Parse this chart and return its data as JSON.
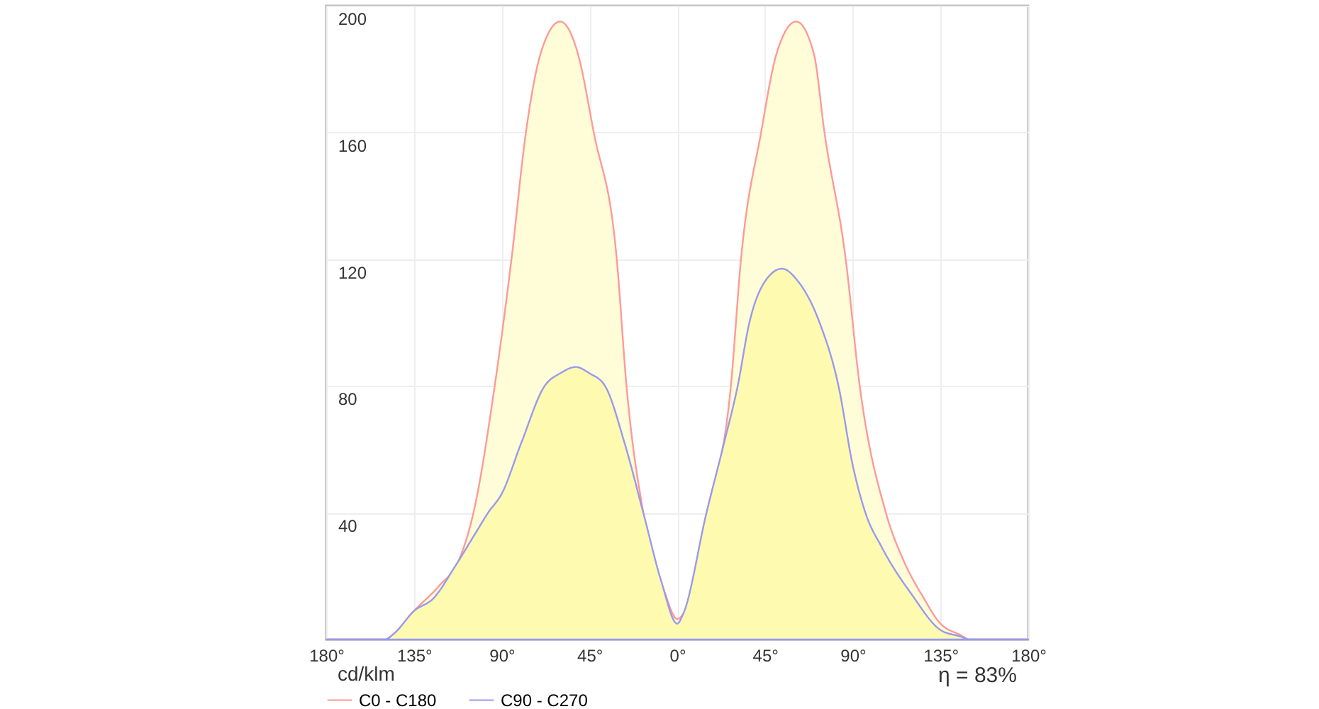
{
  "chart_data": {
    "type": "area",
    "annotations": [
      "cd/klm",
      "η = 83%"
    ],
    "xlim": [
      -180,
      180
    ],
    "xticks": [
      {
        "value": -180,
        "label": "180°"
      },
      {
        "value": -135,
        "label": "135°"
      },
      {
        "value": -90,
        "label": "90°"
      },
      {
        "value": -45,
        "label": "45°"
      },
      {
        "value": 0,
        "label": "0°"
      },
      {
        "value": 45,
        "label": "45°"
      },
      {
        "value": 90,
        "label": "90°"
      },
      {
        "value": 135,
        "label": "135°"
      },
      {
        "value": 180,
        "label": "180°"
      }
    ],
    "ylim": [
      0,
      200
    ],
    "yticks": [
      40,
      80,
      120,
      160,
      200
    ],
    "grid": true,
    "legend": "bottom left",
    "marker": "none",
    "line_style": "solid",
    "series": [
      {
        "name": "C0 - C180",
        "color": "#ff9999",
        "x": [
          -180,
          -150,
          -145,
          -135,
          -122,
          -112,
          -104.5,
          -93.6,
          -85,
          -77.6,
          -70,
          -60,
          -51,
          -42.8,
          -31,
          -26,
          -17.4,
          -6.5,
          0,
          3,
          15.2,
          27.5,
          32.7,
          43,
          51,
          61,
          70,
          75.5,
          86.4,
          93.6,
          107,
          116,
          125.5,
          135,
          145,
          150,
          180
        ],
        "values": [
          0,
          0,
          2,
          9,
          17,
          25,
          40,
          80,
          120,
          160,
          185,
          195,
          185,
          160,
          120,
          80,
          40,
          15,
          6.5,
          8,
          40,
          80,
          120,
          160,
          185,
          195,
          185,
          160,
          120,
          80,
          40,
          25,
          14,
          5,
          1.5,
          0,
          0
        ]
      },
      {
        "name": "C90 - C270",
        "color": "#9999ee",
        "x": [
          -180,
          -150,
          -145,
          -135,
          -125,
          -114,
          -104,
          -97,
          -90,
          -80,
          -68,
          -60,
          -52,
          -45,
          -37,
          -27,
          -17.4,
          -8,
          0,
          3,
          15,
          24,
          31,
          37,
          45,
          53.7,
          62,
          73,
          82.7,
          90,
          96.5,
          105,
          120.5,
          135,
          145,
          150,
          180
        ],
        "values": [
          0,
          0,
          2,
          9,
          13,
          23,
          33,
          40,
          46,
          62,
          80,
          84,
          86,
          84,
          80,
          62,
          40,
          18,
          5,
          8,
          40,
          62,
          80,
          100,
          113,
          117,
          113,
          100,
          80,
          55,
          40,
          29,
          14,
          3,
          1,
          0,
          0
        ]
      }
    ]
  }
}
